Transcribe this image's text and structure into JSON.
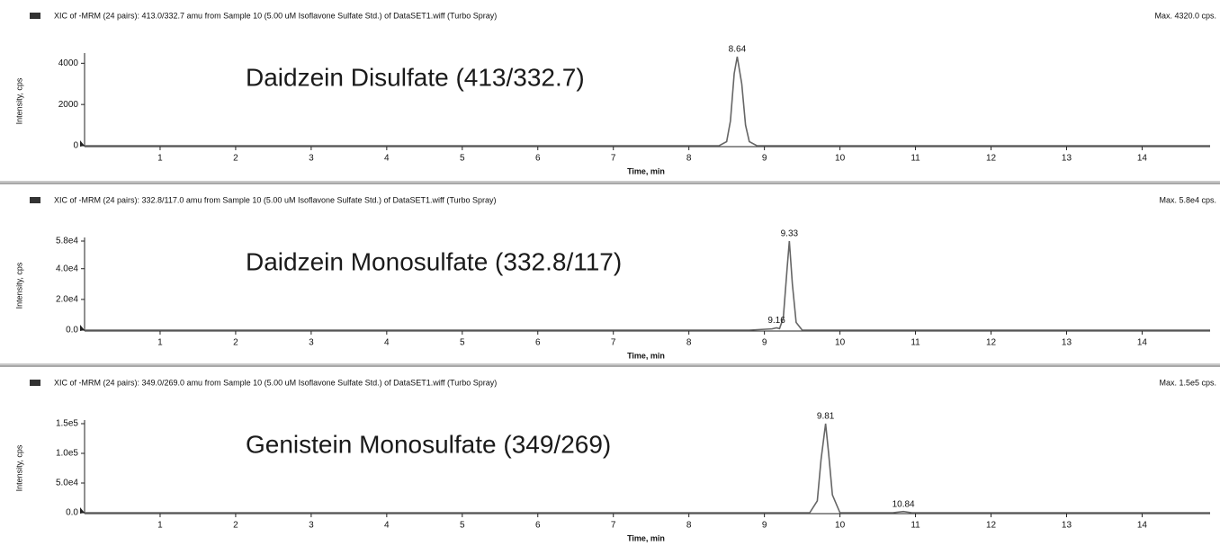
{
  "chart_data": [
    {
      "type": "line",
      "header": "XIC of -MRM (24 pairs): 413.0/332.7 amu from Sample 10 (5.00 uM Isoflavone Sulfate Std.) of DataSET1.wiff (Turbo Spray)",
      "max_label": "Max. 4320.0 cps.",
      "annotation": "Daidzein Disulfate (413/332.7)",
      "xlabel": "Time, min",
      "ylabel": "Intensity, cps",
      "x": [
        0,
        8.4,
        8.5,
        8.55,
        8.6,
        8.64,
        8.7,
        8.75,
        8.8,
        8.9,
        14.9
      ],
      "values": [
        0,
        0,
        200,
        1200,
        3500,
        4320,
        3000,
        1000,
        200,
        0,
        0
      ],
      "color": "#666666",
      "peaks": [
        {
          "x": 8.64,
          "y": 4320
        }
      ],
      "xlim": [
        0,
        14.9
      ],
      "xticks": [
        1,
        2,
        3,
        4,
        5,
        6,
        7,
        8,
        9,
        10,
        11,
        12,
        13,
        14
      ],
      "ylim": [
        0,
        4320
      ],
      "yticks": [
        0,
        2000,
        4000
      ]
    },
    {
      "type": "line",
      "header": "XIC of -MRM (24 pairs): 332.8/117.0 amu from Sample 10 (5.00 uM Isoflavone Sulfate Std.) of DataSET1.wiff (Turbo Spray)",
      "max_label": "Max. 5.8e4 cps.",
      "annotation": "Daidzein Monosulfate (332.8/117)",
      "xlabel": "Time, min",
      "ylabel": "Intensity, cps",
      "x": [
        0,
        8.8,
        9.1,
        9.16,
        9.2,
        9.25,
        9.3,
        9.33,
        9.37,
        9.42,
        9.5,
        14.9
      ],
      "values": [
        0,
        0,
        800,
        1500,
        1000,
        8000,
        40000,
        58000,
        30000,
        5000,
        0,
        0
      ],
      "color": "#666666",
      "peaks": [
        {
          "x": 9.33,
          "y": 58000
        },
        {
          "x": 9.16,
          "y": 1500
        }
      ],
      "xlim": [
        0,
        14.9
      ],
      "xticks": [
        1,
        2,
        3,
        4,
        5,
        6,
        7,
        8,
        9,
        10,
        11,
        12,
        13,
        14
      ],
      "ylim": [
        0,
        58000
      ],
      "yticks": [
        {
          "value": 0,
          "label": "0.0"
        },
        {
          "value": 20000,
          "label": "2.0e4"
        },
        {
          "value": 40000,
          "label": "4.0e4"
        },
        {
          "value": 58000,
          "label": "5.8e4"
        }
      ]
    },
    {
      "type": "line",
      "header": "XIC of -MRM (24 pairs): 349.0/269.0 amu from Sample 10 (5.00 uM Isoflavone Sulfate Std.) of DataSET1.wiff (Turbo Spray)",
      "max_label": "Max. 1.5e5 cps.",
      "annotation": "Genistein Monosulfate (349/269)",
      "xlabel": "Time, min",
      "ylabel": "Intensity, cps",
      "x": [
        0,
        9.6,
        9.7,
        9.75,
        9.81,
        9.85,
        9.9,
        10.0,
        10.7,
        10.84,
        10.95,
        14.9
      ],
      "values": [
        0,
        0,
        20000,
        90000,
        150000,
        100000,
        30000,
        0,
        0,
        2000,
        0,
        0
      ],
      "color": "#666666",
      "peaks": [
        {
          "x": 9.81,
          "y": 150000
        },
        {
          "x": 10.84,
          "y": 2000
        }
      ],
      "xlim": [
        0,
        14.9
      ],
      "xticks": [
        1,
        2,
        3,
        4,
        5,
        6,
        7,
        8,
        9,
        10,
        11,
        12,
        13,
        14
      ],
      "ylim": [
        0,
        150000
      ],
      "yticks": [
        {
          "value": 0,
          "label": "0.0"
        },
        {
          "value": 50000,
          "label": "5.0e4"
        },
        {
          "value": 100000,
          "label": "1.0e5"
        },
        {
          "value": 150000,
          "label": "1.5e5"
        }
      ]
    }
  ]
}
